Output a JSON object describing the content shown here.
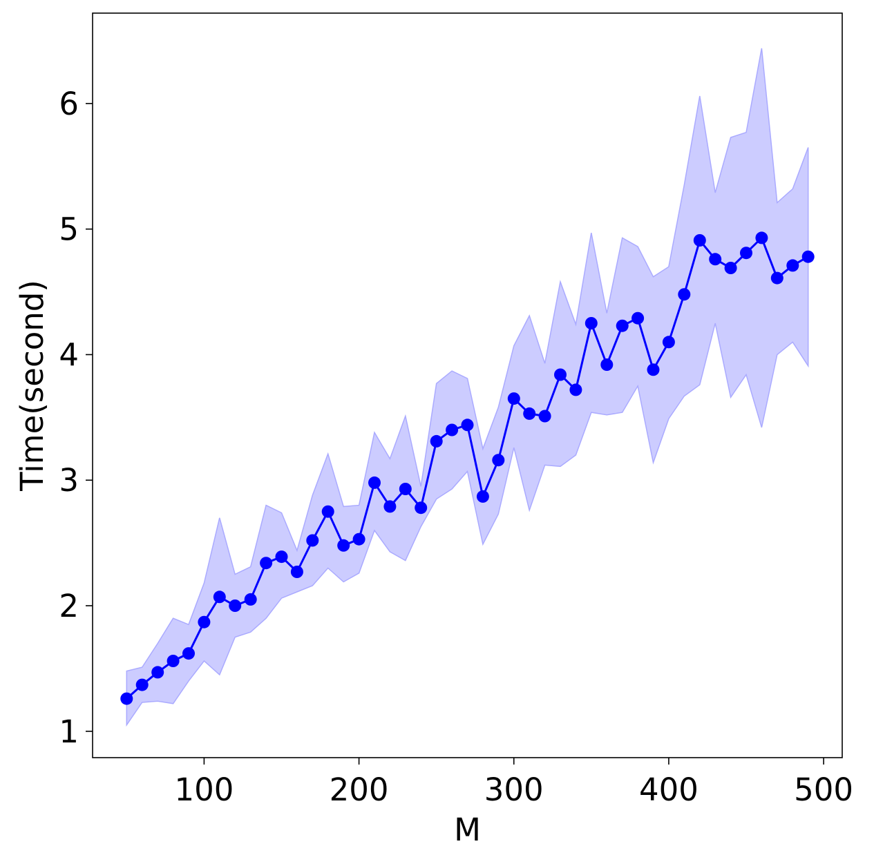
{
  "chart_data": {
    "type": "line",
    "title": "",
    "xlabel": "M",
    "ylabel": "Time(second)",
    "xlim": [
      28,
      512
    ],
    "ylim": [
      0.79,
      6.72
    ],
    "xticks": [
      100,
      200,
      300,
      400,
      500
    ],
    "yticks": [
      1,
      2,
      3,
      4,
      5,
      6
    ],
    "grid": false,
    "legend": "none",
    "colors": {
      "line": "#0000ff",
      "band_fill": "#ccccff",
      "band_edge": "#aaaaff",
      "axes": "#000000"
    },
    "x": [
      50,
      60,
      70,
      80,
      90,
      100,
      110,
      120,
      130,
      140,
      150,
      160,
      170,
      180,
      190,
      200,
      210,
      220,
      230,
      240,
      250,
      260,
      270,
      280,
      290,
      300,
      310,
      320,
      330,
      340,
      350,
      360,
      370,
      380,
      390,
      400,
      410,
      420,
      430,
      440,
      450,
      460,
      470,
      480,
      490
    ],
    "series": [
      {
        "values": [
          1.26,
          1.37,
          1.47,
          1.56,
          1.62,
          1.87,
          2.07,
          2.0,
          2.05,
          2.34,
          2.39,
          2.27,
          2.52,
          2.75,
          2.48,
          2.53,
          2.98,
          2.79,
          2.93,
          2.78,
          3.31,
          3.4,
          3.44,
          2.87,
          3.16,
          3.65,
          3.53,
          3.51,
          3.84,
          3.72,
          4.25,
          3.92,
          4.23,
          4.29,
          3.88,
          4.1,
          4.48,
          4.91,
          4.76,
          4.69,
          4.81,
          4.93,
          4.61,
          4.71,
          4.78
        ],
        "upper": [
          1.48,
          1.51,
          1.7,
          1.9,
          1.85,
          2.18,
          2.7,
          2.25,
          2.31,
          2.8,
          2.74,
          2.44,
          2.88,
          3.21,
          2.79,
          2.8,
          3.38,
          3.17,
          3.51,
          2.95,
          3.77,
          3.87,
          3.81,
          3.25,
          3.58,
          4.07,
          4.31,
          3.93,
          4.58,
          4.24,
          4.97,
          4.33,
          4.93,
          4.86,
          4.62,
          4.7,
          5.35,
          6.06,
          5.29,
          5.73,
          5.77,
          6.44,
          5.21,
          5.32,
          5.65
        ],
        "lower": [
          1.05,
          1.23,
          1.24,
          1.22,
          1.4,
          1.56,
          1.45,
          1.75,
          1.79,
          1.9,
          2.06,
          2.11,
          2.16,
          2.3,
          2.19,
          2.26,
          2.6,
          2.43,
          2.36,
          2.63,
          2.85,
          2.93,
          3.07,
          2.49,
          2.73,
          3.26,
          2.76,
          3.12,
          3.11,
          3.2,
          3.54,
          3.52,
          3.54,
          3.75,
          3.14,
          3.49,
          3.67,
          3.76,
          4.25,
          3.66,
          3.84,
          3.42,
          4.0,
          4.1,
          3.91
        ]
      }
    ]
  }
}
